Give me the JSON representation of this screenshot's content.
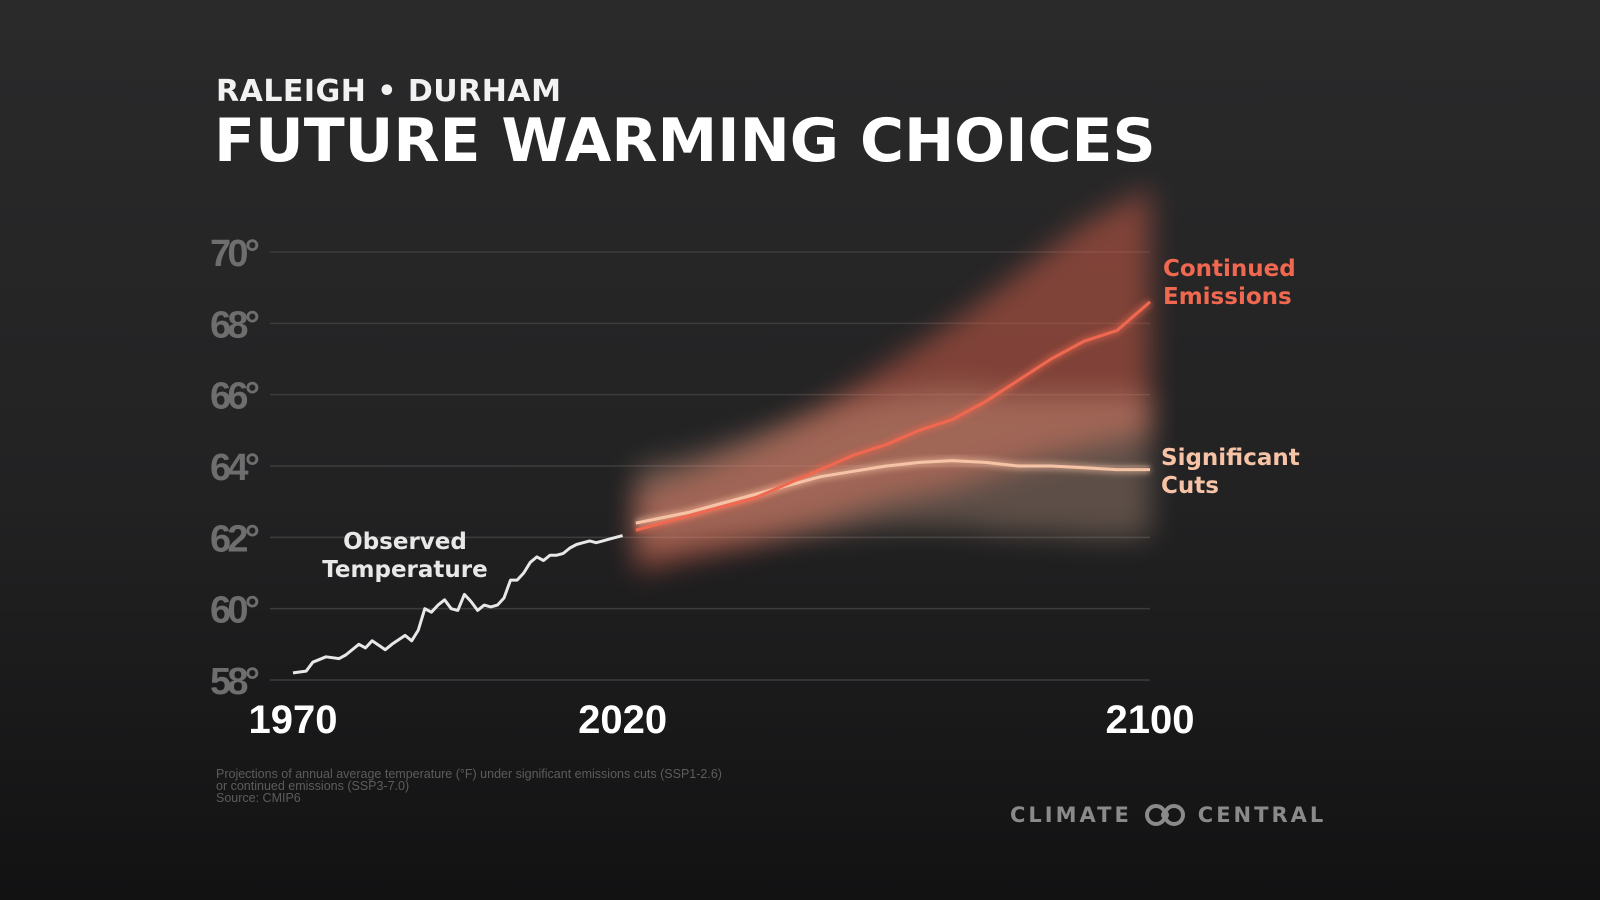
{
  "subtitle": "RALEIGH • DURHAM",
  "title": "FUTURE WARMING CHOICES",
  "footnote": [
    "Projections of annual average temperature (°F) under significant emissions cuts (SSP1-2.6)",
    "or continued emissions (SSP3-7.0)",
    "Source: CMIP6"
  ],
  "logo": {
    "left": "CLIMATE",
    "right": "CENTRAL"
  },
  "chart_data": {
    "type": "line",
    "title": "FUTURE WARMING CHOICES",
    "xlim": [
      1970,
      2100
    ],
    "ylim": [
      58,
      70
    ],
    "x_ticks": [
      "1970",
      "2020",
      "2100"
    ],
    "x_tick_values": [
      1970,
      2020,
      2100
    ],
    "y_ticks": [
      "58°",
      "60°",
      "62°",
      "64°",
      "66°",
      "68°",
      "70°"
    ],
    "y_tick_values": [
      58,
      60,
      62,
      64,
      66,
      68,
      70
    ],
    "grid": "horizontal",
    "series": [
      {
        "name": "Observed Temperature",
        "color": "#e8e8e8",
        "x": [
          1970,
          1972,
          1973,
          1975,
          1977,
          1978,
          1980,
          1981,
          1982,
          1984,
          1985,
          1987,
          1988,
          1989,
          1990,
          1991,
          1992,
          1993,
          1994,
          1995,
          1996,
          1997,
          1998,
          1999,
          2000,
          2001,
          2002,
          2003,
          2004,
          2005,
          2006,
          2007,
          2008,
          2009,
          2010,
          2011,
          2012,
          2013,
          2014,
          2015,
          2016,
          2017,
          2018,
          2019,
          2020
        ],
        "y": [
          58.2,
          58.25,
          58.5,
          58.65,
          58.6,
          58.7,
          59.0,
          58.9,
          59.1,
          58.85,
          59.0,
          59.25,
          59.1,
          59.4,
          60.0,
          59.9,
          60.1,
          60.25,
          60.0,
          59.95,
          60.4,
          60.2,
          59.95,
          60.1,
          60.05,
          60.1,
          60.3,
          60.8,
          60.8,
          61.0,
          61.3,
          61.45,
          61.35,
          61.5,
          61.5,
          61.55,
          61.7,
          61.8,
          61.85,
          61.9,
          61.85,
          61.9,
          61.95,
          62.0,
          62.05
        ]
      },
      {
        "name": "Continued Emissions",
        "color": "#f0684f",
        "x": [
          2022,
          2030,
          2040,
          2050,
          2055,
          2060,
          2065,
          2070,
          2075,
          2080,
          2085,
          2090,
          2095,
          2100
        ],
        "y": [
          62.2,
          62.6,
          63.1,
          63.9,
          64.3,
          64.6,
          65.0,
          65.3,
          65.8,
          66.4,
          67.0,
          67.5,
          67.8,
          68.6
        ],
        "band_upper": [
          63.3,
          63.8,
          64.6,
          65.6,
          66.2,
          66.8,
          67.4,
          68.0,
          68.7,
          69.4,
          70.1,
          70.8,
          71.3,
          71.8
        ],
        "band_lower": [
          61.0,
          61.4,
          61.8,
          62.4,
          62.7,
          63.0,
          63.2,
          63.4,
          63.7,
          64.0,
          64.3,
          64.5,
          64.7,
          64.9
        ]
      },
      {
        "name": "Significant Cuts",
        "color": "#f7c3a6",
        "x": [
          2022,
          2030,
          2040,
          2050,
          2055,
          2060,
          2065,
          2070,
          2075,
          2080,
          2085,
          2090,
          2095,
          2100
        ],
        "y": [
          62.4,
          62.7,
          63.2,
          63.7,
          63.85,
          64.0,
          64.1,
          64.15,
          64.1,
          64.0,
          64.0,
          63.95,
          63.9,
          63.9
        ],
        "band_upper": [
          64.0,
          64.3,
          64.9,
          65.5,
          65.8,
          66.0,
          66.1,
          66.2,
          66.1,
          66.0,
          66.0,
          66.0,
          66.0,
          66.0
        ],
        "band_lower": [
          61.6,
          61.8,
          62.0,
          62.1,
          62.2,
          62.3,
          62.3,
          62.3,
          62.2,
          62.1,
          62.1,
          62.0,
          62.0,
          62.0
        ]
      }
    ],
    "annotations": [
      {
        "lines": [
          "Observed",
          "Temperature"
        ],
        "color": "#e8e8e8"
      },
      {
        "lines": [
          "Continued",
          "Emissions"
        ],
        "color": "#f0684f"
      },
      {
        "lines": [
          "Significant",
          "Cuts"
        ],
        "color": "#f7c3a6"
      }
    ]
  }
}
